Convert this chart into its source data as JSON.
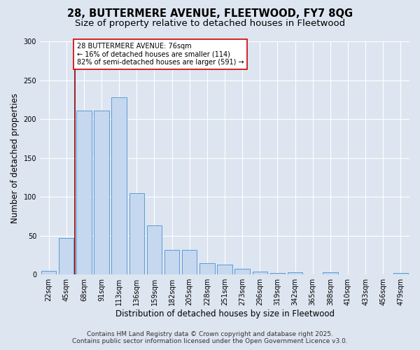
{
  "title_line1": "28, BUTTERMERE AVENUE, FLEETWOOD, FY7 8QG",
  "title_line2": "Size of property relative to detached houses in Fleetwood",
  "xlabel": "Distribution of detached houses by size in Fleetwood",
  "ylabel": "Number of detached properties",
  "bar_labels": [
    "22sqm",
    "45sqm",
    "68sqm",
    "91sqm",
    "113sqm",
    "136sqm",
    "159sqm",
    "182sqm",
    "205sqm",
    "228sqm",
    "251sqm",
    "273sqm",
    "296sqm",
    "319sqm",
    "342sqm",
    "365sqm",
    "388sqm",
    "410sqm",
    "433sqm",
    "456sqm",
    "479sqm"
  ],
  "bar_values": [
    5,
    47,
    211,
    211,
    228,
    105,
    63,
    32,
    32,
    15,
    13,
    7,
    4,
    2,
    3,
    0,
    3,
    0,
    0,
    0,
    2
  ],
  "bar_color": "#c5d8f0",
  "bar_edgecolor": "#5b9bd5",
  "annotation_title": "28 BUTTERMERE AVENUE: 76sqm",
  "annotation_line2": "← 16% of detached houses are smaller (114)",
  "annotation_line3": "82% of semi-detached houses are larger (591) →",
  "vline_color": "#8b0000",
  "annotation_box_color": "white",
  "annotation_box_edgecolor": "#cc0000",
  "ylim": [
    0,
    300
  ],
  "yticks": [
    0,
    50,
    100,
    150,
    200,
    250,
    300
  ],
  "footer_line1": "Contains HM Land Registry data © Crown copyright and database right 2025.",
  "footer_line2": "Contains public sector information licensed under the Open Government Licence v3.0.",
  "background_color": "#dde5f0",
  "plot_background": "#dde5f0",
  "grid_color": "white",
  "title_fontsize": 10.5,
  "subtitle_fontsize": 9.5,
  "axis_label_fontsize": 8.5,
  "tick_fontsize": 7,
  "annotation_fontsize": 7,
  "footer_fontsize": 6.5
}
